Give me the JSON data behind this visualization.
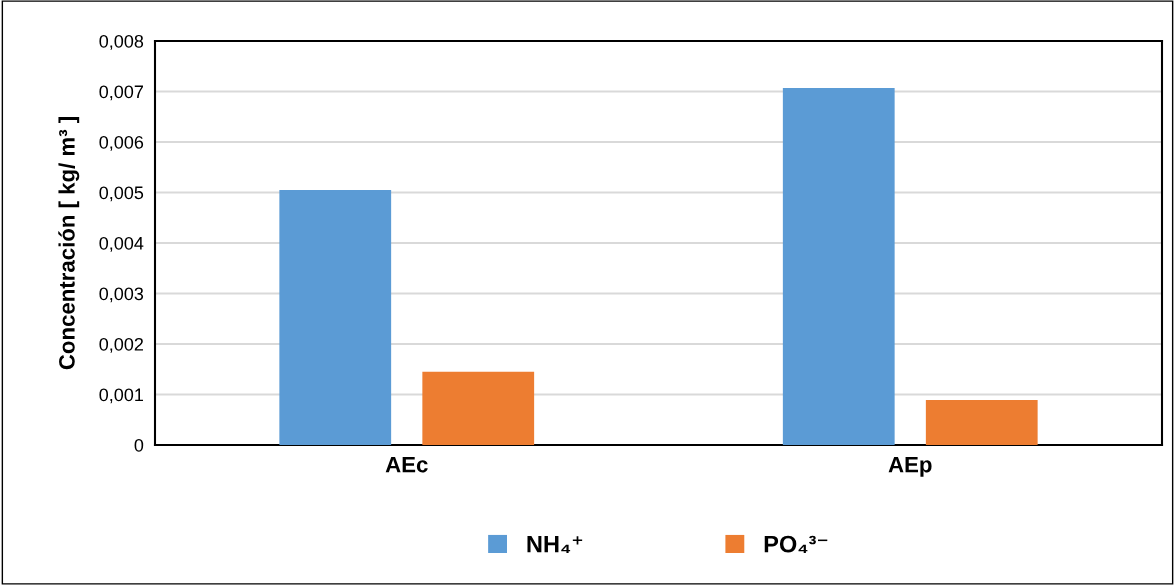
{
  "chart_data": {
    "type": "bar",
    "ylabel": "Concentración [ kg/ m³ ]",
    "categories": [
      "AEc",
      "AEp"
    ],
    "series": [
      {
        "name": "NH₄⁺",
        "color": "#5b9bd5",
        "values": [
          0.00505,
          0.00707
        ]
      },
      {
        "name": "PO₄³⁻",
        "color": "#ed7d31",
        "values": [
          0.00145,
          0.00089
        ]
      }
    ],
    "ylim": [
      0,
      0.008
    ],
    "yticks": [
      0,
      {
        "value": 0.001,
        "label": "0,001"
      },
      {
        "value": 0.002,
        "label": "0,002"
      },
      {
        "value": 0.003,
        "label": "0,003"
      },
      {
        "value": 0.004,
        "label": "0,004"
      },
      {
        "value": 0.005,
        "label": "0,005"
      },
      {
        "value": 0.006,
        "label": "0,006"
      },
      {
        "value": 0.007,
        "label": "0,007"
      },
      {
        "value": 0.008,
        "label": "0,008"
      }
    ],
    "grid": "y",
    "legend": "bottom"
  }
}
